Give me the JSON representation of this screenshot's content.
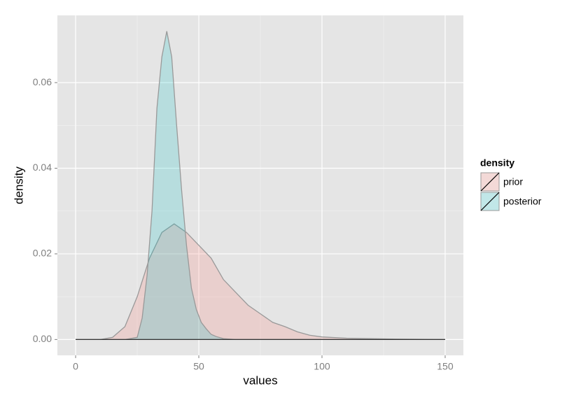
{
  "chart_data": {
    "type": "area",
    "x_label": "values",
    "y_label": "density",
    "xlim": [
      -7.4,
      157.4
    ],
    "ylim": [
      -0.0037,
      0.0757
    ],
    "xticks": [
      0,
      50,
      100,
      150
    ],
    "yticks": [
      {
        "value": 0,
        "label": "0.00"
      },
      {
        "value": 0.02,
        "label": "0.02"
      },
      {
        "value": 0.04,
        "label": "0.04"
      },
      {
        "value": 0.06,
        "label": "0.06"
      }
    ],
    "grid": true,
    "legend_title": "density",
    "legend_position": "right",
    "series": [
      {
        "name": "prior",
        "color": "#F8766D",
        "x": [
          0,
          10,
          15,
          20,
          25,
          30,
          35,
          40,
          45,
          50,
          55,
          60,
          65,
          70,
          75,
          80,
          85,
          90,
          95,
          100,
          110,
          120,
          130,
          150
        ],
        "values": [
          0,
          0,
          0.0005,
          0.003,
          0.01,
          0.019,
          0.025,
          0.027,
          0.025,
          0.022,
          0.019,
          0.014,
          0.011,
          0.008,
          0.006,
          0.004,
          0.003,
          0.0018,
          0.001,
          0.0006,
          0.0003,
          0.0002,
          0.0001,
          0
        ]
      },
      {
        "name": "posterior",
        "color": "#00BFC4",
        "x": [
          0,
          20,
          25,
          27,
          29,
          31,
          33,
          35,
          37,
          39,
          41,
          43,
          45,
          47,
          49,
          51,
          53,
          55,
          57,
          60,
          65,
          150
        ],
        "values": [
          0,
          0,
          0.0005,
          0.005,
          0.015,
          0.03,
          0.054,
          0.066,
          0.072,
          0.066,
          0.05,
          0.035,
          0.022,
          0.012,
          0.007,
          0.004,
          0.0025,
          0.0012,
          0.0007,
          0.0002,
          0,
          0
        ]
      }
    ]
  }
}
